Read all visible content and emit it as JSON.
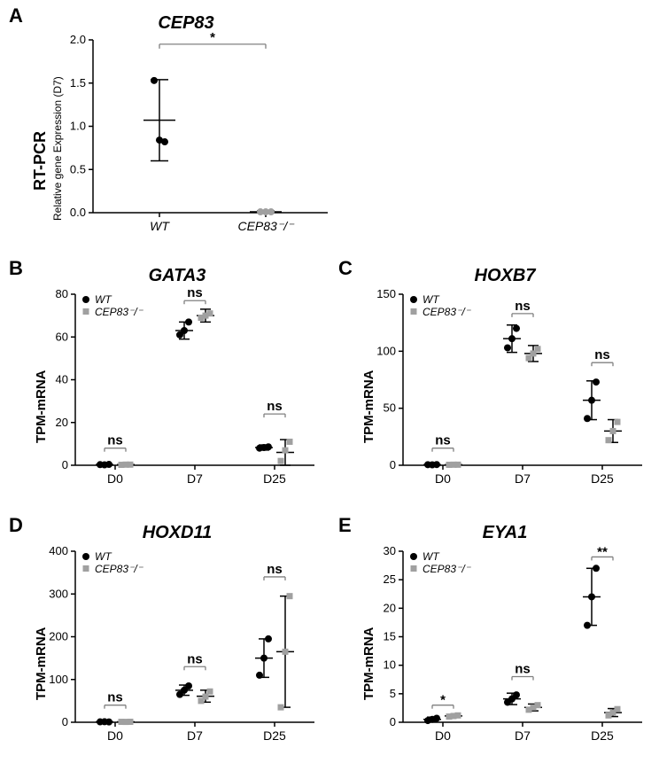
{
  "panels": {
    "A": {
      "label": "A",
      "title": "CEP83",
      "ylabel_main": "RT-PCR",
      "ylabel_sub": "Relative gene Expression (D7)",
      "ylim": [
        0,
        2.0
      ],
      "ytick_step": 0.5,
      "groups": [
        {
          "name": "WT",
          "points": [
            1.53,
            0.84,
            0.82
          ],
          "mean": 1.07,
          "sd": 0.47,
          "color": "#000000"
        },
        {
          "name": "CEP83⁻/⁻",
          "points": [
            0.01,
            0.01,
            0.01
          ],
          "mean": 0.01,
          "sd": 0.01,
          "color": "#a0a0a0"
        }
      ],
      "annot": {
        "label": "*",
        "y": 1.95,
        "from": 0,
        "to": 1
      }
    },
    "B": {
      "label": "B",
      "title": "GATA3",
      "ylabel": "TPM-mRNA",
      "ylim": [
        0,
        80
      ],
      "ytick_step": 20,
      "days": [
        "D0",
        "D7",
        "D25"
      ],
      "legend": true,
      "series": {
        "WT": {
          "color": "#000000",
          "shape": "circle",
          "D0": {
            "pts": [
              0.3,
              0.2,
              0.4
            ],
            "mean": 0.3,
            "sd": 0.3
          },
          "D7": {
            "pts": [
              61,
              63,
              67
            ],
            "mean": 63,
            "sd": 4
          },
          "D25": {
            "pts": [
              8,
              8.3,
              8.6
            ],
            "mean": 8.3,
            "sd": 1.2
          }
        },
        "KO": {
          "color": "#a0a0a0",
          "shape": "square",
          "D0": {
            "pts": [
              0.2,
              0.3,
              0.3
            ],
            "mean": 0.3,
            "sd": 0.3
          },
          "D7": {
            "pts": [
              69,
              70,
              71
            ],
            "mean": 70,
            "sd": 3
          },
          "D25": {
            "pts": [
              2,
              7,
              11
            ],
            "mean": 6,
            "sd": 6
          }
        }
      },
      "annots": [
        {
          "label": "ns",
          "day": "D0",
          "y": 8
        },
        {
          "label": "ns",
          "day": "D7",
          "y": 77
        },
        {
          "label": "ns",
          "day": "D25",
          "y": 24
        }
      ]
    },
    "C": {
      "label": "C",
      "title": "HOXB7",
      "ylabel": "TPM-mRNA",
      "ylim": [
        0,
        150
      ],
      "ytick_step": 50,
      "days": [
        "D0",
        "D7",
        "D25"
      ],
      "legend": true,
      "series": {
        "WT": {
          "color": "#000000",
          "shape": "circle",
          "D0": {
            "pts": [
              0.5,
              0.4,
              0.6
            ],
            "mean": 0.5,
            "sd": 0.5
          },
          "D7": {
            "pts": [
              103,
              111,
              120
            ],
            "mean": 111,
            "sd": 12
          },
          "D25": {
            "pts": [
              41,
              57,
              73
            ],
            "mean": 57,
            "sd": 17
          }
        },
        "KO": {
          "color": "#a0a0a0",
          "shape": "square",
          "D0": {
            "pts": [
              0.4,
              0.5,
              0.5
            ],
            "mean": 0.5,
            "sd": 0.5
          },
          "D7": {
            "pts": [
              94,
              98,
              102
            ],
            "mean": 98,
            "sd": 7
          },
          "D25": {
            "pts": [
              22,
              30,
              38
            ],
            "mean": 30,
            "sd": 10
          }
        }
      },
      "annots": [
        {
          "label": "ns",
          "day": "D0",
          "y": 15
        },
        {
          "label": "ns",
          "day": "D7",
          "y": 133
        },
        {
          "label": "ns",
          "day": "D25",
          "y": 90
        }
      ]
    },
    "D": {
      "label": "D",
      "title": "HOXD11",
      "ylabel": "TPM-mRNA",
      "ylim": [
        0,
        400
      ],
      "ytick_step": 100,
      "days": [
        "D0",
        "D7",
        "D25"
      ],
      "legend": true,
      "series": {
        "WT": {
          "color": "#000000",
          "shape": "circle",
          "D0": {
            "pts": [
              1,
              1.2,
              0.8
            ],
            "mean": 1,
            "sd": 1
          },
          "D7": {
            "pts": [
              65,
              75,
              85
            ],
            "mean": 75,
            "sd": 12
          },
          "D25": {
            "pts": [
              110,
              150,
              195
            ],
            "mean": 150,
            "sd": 45
          }
        },
        "KO": {
          "color": "#a0a0a0",
          "shape": "square",
          "D0": {
            "pts": [
              1,
              0.9,
              1.1
            ],
            "mean": 1,
            "sd": 1
          },
          "D7": {
            "pts": [
              50,
              60,
              72
            ],
            "mean": 61,
            "sd": 14
          },
          "D25": {
            "pts": [
              35,
              165,
              295
            ],
            "mean": 165,
            "sd": 130
          }
        }
      },
      "annots": [
        {
          "label": "ns",
          "day": "D0",
          "y": 40
        },
        {
          "label": "ns",
          "day": "D7",
          "y": 130
        },
        {
          "label": "ns",
          "day": "D25",
          "y": 340
        }
      ]
    },
    "E": {
      "label": "E",
      "title": "EYA1",
      "ylabel": "TPM-mRNA",
      "ylim": [
        0,
        30
      ],
      "ytick_step": 5,
      "days": [
        "D0",
        "D7",
        "D25"
      ],
      "legend": true,
      "series": {
        "WT": {
          "color": "#000000",
          "shape": "circle",
          "D0": {
            "pts": [
              0.3,
              0.5,
              0.7
            ],
            "mean": 0.5,
            "sd": 0.4
          },
          "D7": {
            "pts": [
              3.5,
              4.1,
              4.8
            ],
            "mean": 4.1,
            "sd": 1.0
          },
          "D25": {
            "pts": [
              17,
              22,
              27
            ],
            "mean": 22,
            "sd": 5
          }
        },
        "KO": {
          "color": "#a0a0a0",
          "shape": "square",
          "D0": {
            "pts": [
              1.0,
              1.1,
              1.2
            ],
            "mean": 1.1,
            "sd": 0.2
          },
          "D7": {
            "pts": [
              2.2,
              2.6,
              3.0
            ],
            "mean": 2.6,
            "sd": 0.6
          },
          "D25": {
            "pts": [
              1.2,
              1.7,
              2.3
            ],
            "mean": 1.7,
            "sd": 0.7
          }
        }
      },
      "annots": [
        {
          "label": "*",
          "day": "D0",
          "y": 3
        },
        {
          "label": "ns",
          "day": "D7",
          "y": 8
        },
        {
          "label": "**",
          "day": "D25",
          "y": 29
        }
      ]
    }
  },
  "legend_labels": {
    "WT": "WT",
    "KO": "CEP83⁻/⁻"
  }
}
